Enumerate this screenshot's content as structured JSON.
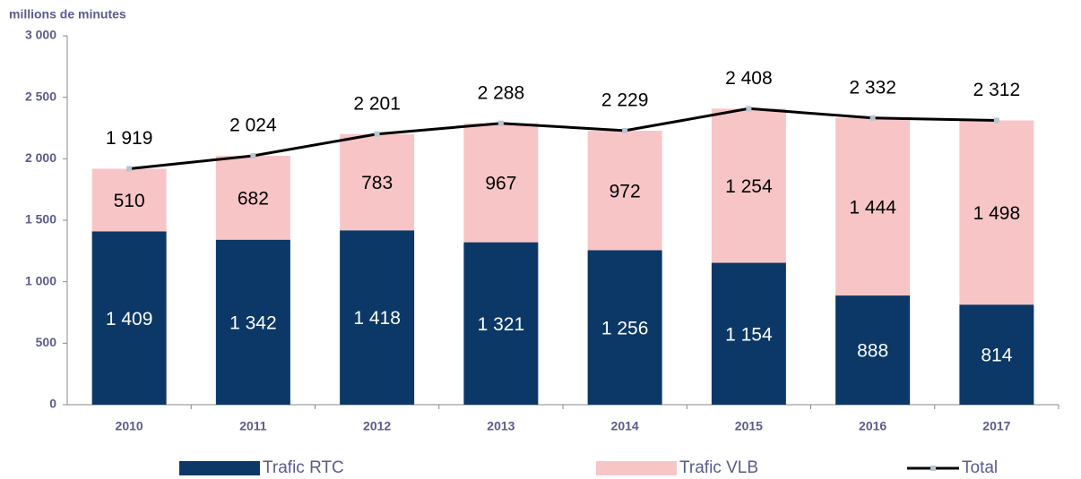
{
  "chart_data": {
    "type": "stacked-bar-line",
    "y_axis_label": "millions de minutes",
    "categories": [
      "2010",
      "2011",
      "2012",
      "2013",
      "2014",
      "2015",
      "2016",
      "2017"
    ],
    "series": [
      {
        "name": "Trafic RTC",
        "color": "#0b3866",
        "values": [
          1409,
          1342,
          1418,
          1321,
          1256,
          1154,
          888,
          814
        ],
        "value_labels": [
          "1 409",
          "1 342",
          "1 418",
          "1 321",
          "1 256",
          "1 154",
          "888",
          "814"
        ]
      },
      {
        "name": "Trafic VLB",
        "color": "#f8c5c7",
        "values": [
          510,
          682,
          783,
          967,
          972,
          1254,
          1444,
          1498
        ],
        "value_labels": [
          "510",
          "682",
          "783",
          "967",
          "972",
          "1 254",
          "1 444",
          "1 498"
        ]
      },
      {
        "name": "Total",
        "color": "#000000",
        "line": true,
        "values": [
          1919,
          2024,
          2201,
          2288,
          2229,
          2408,
          2332,
          2312
        ],
        "value_labels": [
          "1 919",
          "2 024",
          "2 201",
          "2 288",
          "2 229",
          "2 408",
          "2 332",
          "2 312"
        ]
      }
    ],
    "ylim": [
      0,
      3000
    ],
    "yticks": [
      0,
      500,
      {
        "value": 1000,
        "label": "1 000"
      },
      {
        "value": 1500,
        "label": "1 500"
      },
      {
        "value": 2000,
        "label": "2 000"
      },
      {
        "value": 2500,
        "label": "2 500"
      },
      {
        "value": 3000,
        "label": "3 000"
      }
    ],
    "legend": "bottom"
  }
}
